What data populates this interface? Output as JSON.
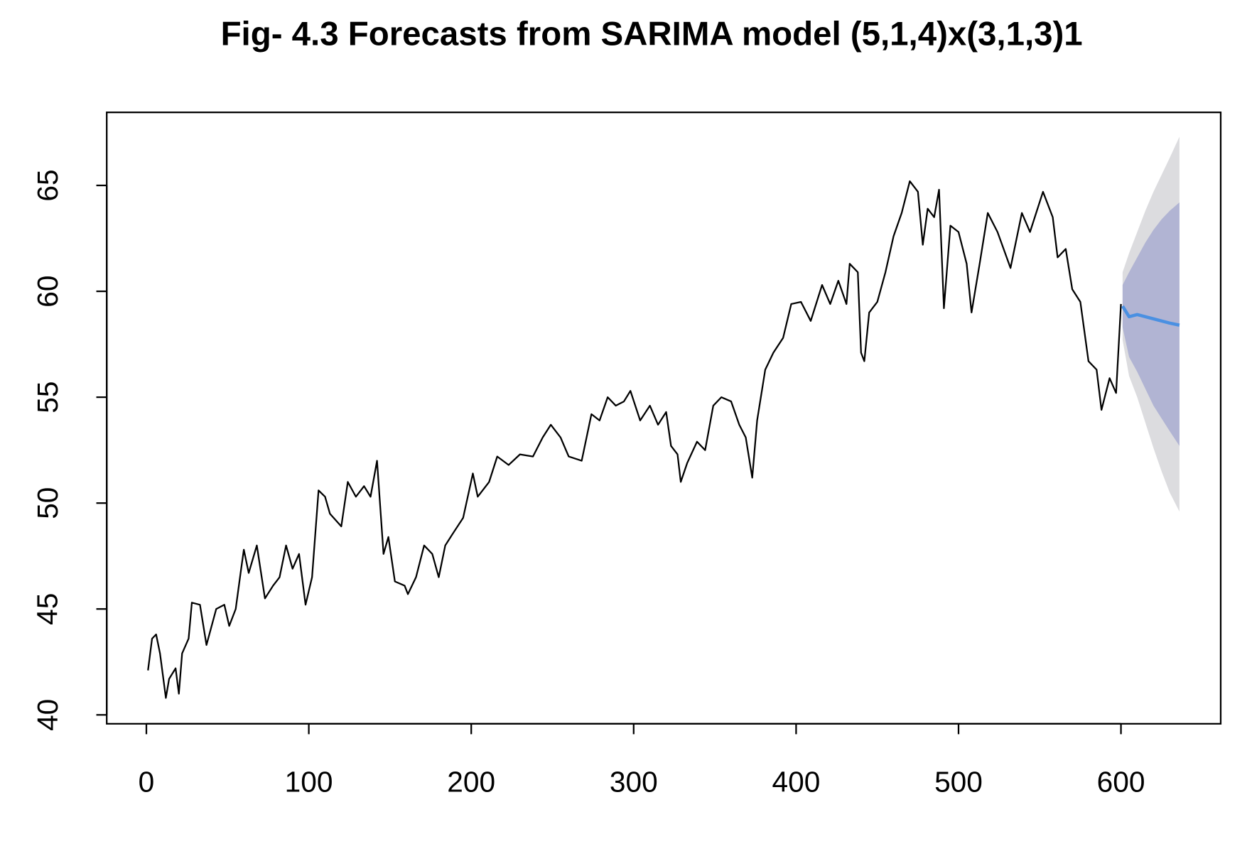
{
  "chart_data": {
    "type": "line",
    "title": "Fig- 4.3 Forecasts from SARIMA model (5,1,4)x(3,1,3)1",
    "xlim": [
      -24.4,
      661.4
    ],
    "ylim": [
      39.58,
      68.45
    ],
    "xticks": [
      0,
      100,
      200,
      300,
      400,
      500,
      600
    ],
    "yticks": [
      40,
      45,
      50,
      55,
      60,
      65
    ],
    "grid": false,
    "series": [
      {
        "color": "#000000",
        "x": [
          1,
          3.5,
          6,
          8.4,
          12,
          14,
          18,
          20,
          22,
          26,
          28,
          33,
          37,
          43,
          48,
          51,
          55,
          58,
          60,
          63,
          68,
          73,
          78,
          82,
          86,
          90,
          94,
          98,
          102,
          106,
          110,
          113,
          120,
          124,
          129,
          134,
          138,
          142,
          146,
          149,
          153,
          159,
          161,
          166,
          171,
          176,
          180,
          184,
          189,
          195,
          201,
          204,
          211,
          216,
          223,
          230,
          238,
          244,
          249,
          255,
          260,
          268,
          274,
          279,
          284,
          289,
          294,
          298,
          304,
          310,
          315,
          320,
          323,
          327,
          329,
          333,
          339,
          344,
          349,
          354,
          360,
          365,
          369,
          373,
          376,
          381,
          386,
          392,
          397,
          403,
          409,
          416,
          421,
          426,
          431,
          433,
          438,
          440,
          442,
          445,
          450,
          455,
          460,
          465,
          470,
          475,
          478,
          481,
          485,
          488,
          491,
          495,
          500,
          505,
          508,
          513,
          518,
          524,
          532,
          539,
          544,
          552,
          558,
          561,
          566,
          570,
          575,
          580,
          585,
          588,
          593,
          597,
          600
        ],
        "values": [
          42.1,
          43.6,
          43.8,
          42.9,
          40.8,
          41.7,
          42.2,
          41.0,
          42.9,
          43.6,
          45.3,
          45.2,
          43.3,
          45.0,
          45.2,
          44.2,
          45.0,
          46.7,
          47.8,
          46.7,
          48.0,
          45.5,
          46.1,
          46.5,
          48.0,
          46.9,
          47.6,
          45.2,
          46.5,
          50.6,
          50.3,
          49.5,
          48.9,
          51.0,
          50.3,
          50.8,
          50.3,
          52.0,
          47.6,
          48.4,
          46.3,
          46.1,
          45.7,
          46.5,
          48.0,
          47.6,
          46.5,
          48.0,
          48.6,
          49.3,
          51.4,
          50.3,
          51.0,
          52.2,
          51.8,
          52.3,
          52.2,
          53.1,
          53.7,
          53.1,
          52.2,
          52.0,
          54.2,
          53.9,
          55.0,
          54.6,
          54.8,
          55.3,
          53.9,
          54.6,
          53.7,
          54.3,
          52.7,
          52.3,
          51.0,
          51.9,
          52.9,
          52.5,
          54.6,
          55.0,
          54.8,
          53.7,
          53.1,
          51.2,
          53.9,
          56.3,
          57.1,
          57.8,
          59.4,
          59.5,
          58.6,
          60.3,
          59.4,
          60.5,
          59.4,
          61.3,
          60.9,
          57.1,
          56.7,
          59.0,
          59.5,
          60.9,
          62.6,
          63.7,
          65.2,
          64.7,
          62.2,
          63.9,
          63.5,
          64.8,
          59.2,
          63.1,
          62.8,
          61.3,
          59.0,
          61.3,
          63.7,
          62.8,
          61.1,
          63.7,
          62.8,
          64.7,
          63.5,
          61.6,
          62.0,
          60.1,
          59.5,
          56.7,
          56.3,
          54.4,
          55.9,
          55.2,
          59.4
        ]
      }
    ],
    "forecast": {
      "x": [
        601,
        605,
        610,
        615,
        620,
        625,
        630,
        636
      ],
      "color": "#4a90e2",
      "values": [
        59.3,
        58.8,
        58.9,
        58.8,
        58.7,
        58.6,
        58.5,
        58.4
      ],
      "bands": [
        {
          "color": "#dcdcdf",
          "lower": [
            57.7,
            56.0,
            55.0,
            53.8,
            52.6,
            51.5,
            50.5,
            49.6
          ],
          "upper": [
            60.9,
            61.8,
            62.8,
            63.8,
            64.7,
            65.5,
            66.3,
            67.3
          ]
        },
        {
          "color": "#b1b4d3",
          "lower": [
            58.3,
            56.9,
            56.2,
            55.4,
            54.6,
            54.0,
            53.4,
            52.7
          ],
          "upper": [
            60.3,
            60.9,
            61.6,
            62.3,
            62.9,
            63.4,
            63.8,
            64.2
          ]
        }
      ]
    }
  }
}
